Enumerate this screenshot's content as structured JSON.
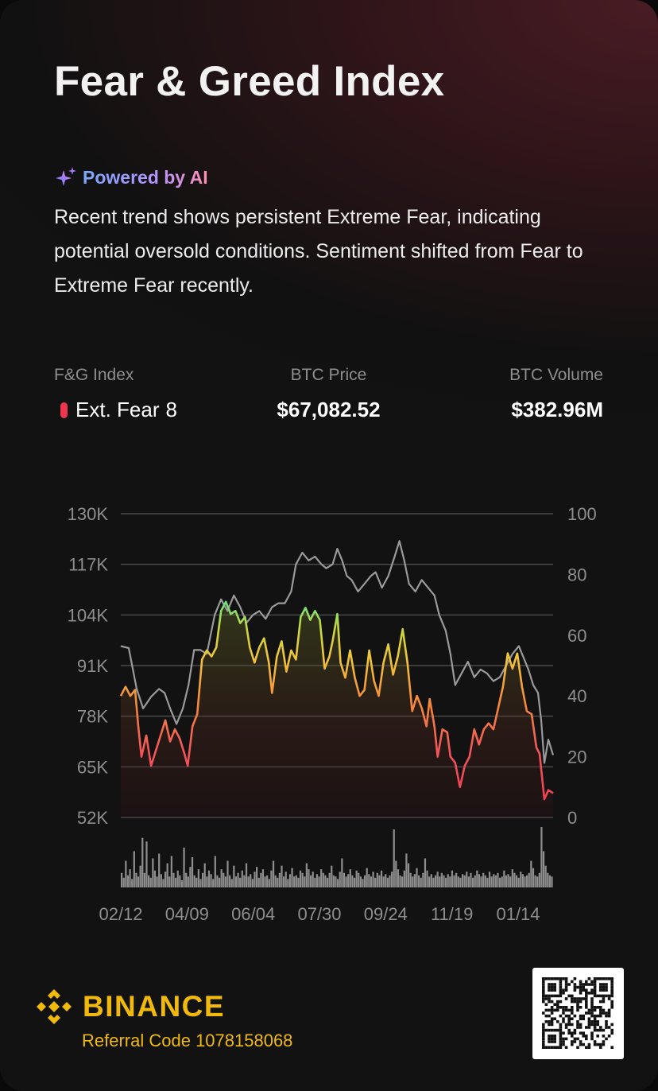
{
  "title": "Fear & Greed Index",
  "ai_badge": {
    "icon": "sparkle-icon",
    "label": "Powered by AI"
  },
  "summary": "Recent trend shows persistent Extreme Fear, indicating potential oversold conditions. Sentiment shifted from Fear to Extreme Fear recently.",
  "stats": {
    "fg": {
      "label": "F&G Index",
      "status": "Ext. Fear",
      "value": "8",
      "color": "#f0364e"
    },
    "price": {
      "label": "BTC Price",
      "value": "$67,082.52"
    },
    "volume": {
      "label": "BTC Volume",
      "value": "$382.96M"
    }
  },
  "chart_data": {
    "type": "line",
    "x_ticks": [
      "02/12",
      "04/09",
      "06/04",
      "07/30",
      "09/24",
      "11/19",
      "01/14"
    ],
    "y_left": {
      "ticks": [
        "130K",
        "117K",
        "104K",
        "91K",
        "78K",
        "65K",
        "52K"
      ],
      "range": [
        52000,
        130000
      ]
    },
    "y_right": {
      "ticks": [
        "100",
        "80",
        "60",
        "40",
        "20",
        "0"
      ],
      "range": [
        0,
        100
      ]
    },
    "grid": true,
    "series": [
      {
        "role": "price",
        "color": "#9a9a9a",
        "points": [
          [
            0,
            96000
          ],
          [
            10,
            95500
          ],
          [
            20,
            85000
          ],
          [
            28,
            80000
          ],
          [
            38,
            83000
          ],
          [
            48,
            85000
          ],
          [
            55,
            84000
          ],
          [
            62,
            80000
          ],
          [
            70,
            76000
          ],
          [
            78,
            80000
          ],
          [
            85,
            86000
          ],
          [
            92,
            95000
          ],
          [
            100,
            95000
          ],
          [
            108,
            94000
          ],
          [
            118,
            104000
          ],
          [
            126,
            108000
          ],
          [
            134,
            105000
          ],
          [
            142,
            109000
          ],
          [
            150,
            106000
          ],
          [
            158,
            102000
          ],
          [
            166,
            104000
          ],
          [
            174,
            105000
          ],
          [
            182,
            103000
          ],
          [
            190,
            106000
          ],
          [
            198,
            107000
          ],
          [
            206,
            107000
          ],
          [
            214,
            110000
          ],
          [
            220,
            117000
          ],
          [
            228,
            120000
          ],
          [
            236,
            118000
          ],
          [
            244,
            119000
          ],
          [
            252,
            117000
          ],
          [
            258,
            116000
          ],
          [
            266,
            117000
          ],
          [
            272,
            121000
          ],
          [
            278,
            118000
          ],
          [
            284,
            114000
          ],
          [
            290,
            113000
          ],
          [
            298,
            110000
          ],
          [
            306,
            112000
          ],
          [
            314,
            114000
          ],
          [
            320,
            115000
          ],
          [
            328,
            111000
          ],
          [
            336,
            114000
          ],
          [
            344,
            119000
          ],
          [
            350,
            123000
          ],
          [
            356,
            118000
          ],
          [
            362,
            112000
          ],
          [
            370,
            110000
          ],
          [
            378,
            113000
          ],
          [
            386,
            111000
          ],
          [
            394,
            109000
          ],
          [
            400,
            104000
          ],
          [
            408,
            100000
          ],
          [
            414,
            94000
          ],
          [
            420,
            86000
          ],
          [
            428,
            89000
          ],
          [
            436,
            92000
          ],
          [
            444,
            88000
          ],
          [
            452,
            90000
          ],
          [
            460,
            89000
          ],
          [
            468,
            87000
          ],
          [
            476,
            88000
          ],
          [
            484,
            91000
          ],
          [
            492,
            94000
          ],
          [
            500,
            96000
          ],
          [
            506,
            93000
          ],
          [
            512,
            90000
          ],
          [
            518,
            86000
          ],
          [
            524,
            84000
          ],
          [
            528,
            77000
          ],
          [
            532,
            66000
          ],
          [
            537,
            72000
          ],
          [
            543,
            68000
          ]
        ]
      },
      {
        "role": "fear-greed",
        "points": [
          [
            0,
            40
          ],
          [
            6,
            43
          ],
          [
            12,
            40
          ],
          [
            18,
            42
          ],
          [
            22,
            30
          ],
          [
            26,
            20
          ],
          [
            32,
            27
          ],
          [
            38,
            17
          ],
          [
            44,
            22
          ],
          [
            50,
            27
          ],
          [
            56,
            32
          ],
          [
            62,
            25
          ],
          [
            68,
            29
          ],
          [
            74,
            26
          ],
          [
            80,
            21
          ],
          [
            84,
            17
          ],
          [
            90,
            30
          ],
          [
            96,
            34
          ],
          [
            102,
            52
          ],
          [
            108,
            55
          ],
          [
            114,
            53
          ],
          [
            120,
            56
          ],
          [
            126,
            68
          ],
          [
            132,
            71
          ],
          [
            138,
            67
          ],
          [
            144,
            68
          ],
          [
            150,
            64
          ],
          [
            156,
            66
          ],
          [
            162,
            56
          ],
          [
            168,
            51
          ],
          [
            174,
            56
          ],
          [
            180,
            59
          ],
          [
            186,
            51
          ],
          [
            190,
            41
          ],
          [
            196,
            53
          ],
          [
            202,
            58
          ],
          [
            208,
            48
          ],
          [
            214,
            55
          ],
          [
            220,
            52
          ],
          [
            226,
            66
          ],
          [
            232,
            69
          ],
          [
            238,
            65
          ],
          [
            244,
            68
          ],
          [
            250,
            65
          ],
          [
            256,
            49
          ],
          [
            262,
            53
          ],
          [
            266,
            58
          ],
          [
            272,
            67
          ],
          [
            276,
            51
          ],
          [
            282,
            46
          ],
          [
            288,
            55
          ],
          [
            294,
            46
          ],
          [
            300,
            40
          ],
          [
            306,
            42
          ],
          [
            312,
            55
          ],
          [
            318,
            45
          ],
          [
            324,
            40
          ],
          [
            330,
            51
          ],
          [
            336,
            57
          ],
          [
            342,
            47
          ],
          [
            348,
            53
          ],
          [
            354,
            62
          ],
          [
            360,
            51
          ],
          [
            366,
            35
          ],
          [
            372,
            40
          ],
          [
            378,
            36
          ],
          [
            384,
            30
          ],
          [
            388,
            39
          ],
          [
            394,
            30
          ],
          [
            398,
            20
          ],
          [
            404,
            29
          ],
          [
            410,
            28
          ],
          [
            414,
            20
          ],
          [
            420,
            18
          ],
          [
            426,
            10
          ],
          [
            432,
            17
          ],
          [
            438,
            20
          ],
          [
            444,
            29
          ],
          [
            450,
            24
          ],
          [
            456,
            29
          ],
          [
            462,
            31
          ],
          [
            468,
            29
          ],
          [
            474,
            36
          ],
          [
            480,
            43
          ],
          [
            486,
            54
          ],
          [
            492,
            49
          ],
          [
            498,
            54
          ],
          [
            504,
            43
          ],
          [
            510,
            35
          ],
          [
            516,
            34
          ],
          [
            522,
            23
          ],
          [
            526,
            21
          ],
          [
            532,
            6
          ],
          [
            537,
            9
          ],
          [
            543,
            8
          ]
        ]
      },
      {
        "role": "volume",
        "color": "#8e8e8e",
        "values": [
          12,
          8,
          22,
          10,
          15,
          7,
          30,
          12,
          9,
          18,
          41,
          12,
          38,
          10,
          8,
          24,
          14,
          9,
          28,
          11,
          7,
          13,
          20,
          9,
          26,
          12,
          8,
          14,
          10,
          6,
          33,
          12,
          9,
          17,
          25,
          10,
          8,
          15,
          7,
          12,
          20,
          9,
          14,
          11,
          7,
          26,
          10,
          8,
          15,
          12,
          9,
          22,
          10,
          7,
          18,
          9,
          12,
          8,
          14,
          10,
          20,
          9,
          11,
          7,
          13,
          17,
          8,
          12,
          15,
          9,
          10,
          7,
          14,
          22,
          10,
          8,
          12,
          18,
          9,
          13,
          7,
          11,
          16,
          9,
          10,
          8,
          14,
          12,
          9,
          20,
          15,
          10,
          13,
          8,
          11,
          9,
          15,
          12,
          10,
          8,
          12,
          18,
          10,
          9,
          7,
          13,
          24,
          12,
          9,
          11,
          15,
          10,
          8,
          14,
          12,
          9,
          7,
          10,
          16,
          11,
          9,
          13,
          8,
          12,
          10,
          14,
          9,
          11,
          8,
          10,
          13,
          48,
          22,
          15,
          10,
          9,
          14,
          28,
          20,
          12,
          9,
          11,
          16,
          10,
          8,
          12,
          24,
          14,
          9,
          11,
          8,
          10,
          13,
          9,
          12,
          10,
          8,
          11,
          9,
          14,
          10,
          12,
          9,
          8,
          11,
          10,
          13,
          9,
          12,
          8,
          10,
          14,
          11,
          9,
          12,
          10,
          8,
          13,
          9,
          11,
          10,
          12,
          8,
          9,
          14,
          10,
          11,
          9,
          15,
          12,
          10,
          8,
          13,
          11,
          9,
          10,
          12,
          22,
          16,
          10,
          9,
          12,
          50,
          30,
          18,
          12,
          10,
          9
        ]
      }
    ]
  },
  "footer": {
    "logo_icon": "binance-logo-icon",
    "brand": "BINANCE",
    "referral": "Referral Code 1078158068",
    "qr_icon": "qr-code-icon"
  }
}
